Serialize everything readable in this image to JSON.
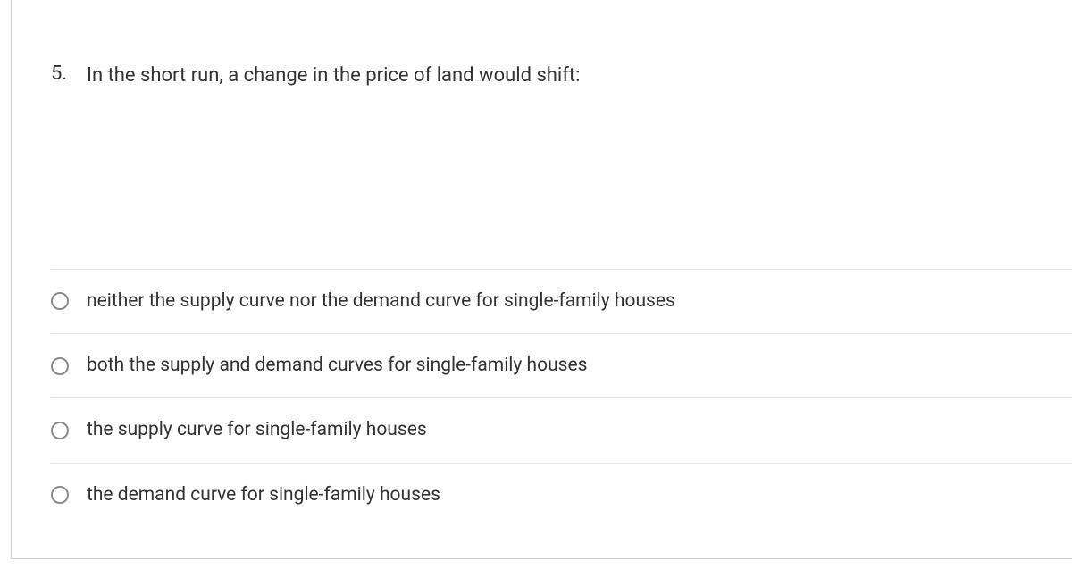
{
  "question": {
    "number": "5.",
    "text": "In the short run, a change in the price of land would shift:",
    "options": [
      {
        "label": "neither the supply curve nor the demand curve for single-family houses"
      },
      {
        "label": "both the supply and demand curves for single-family houses"
      },
      {
        "label": "the supply curve for single-family houses"
      },
      {
        "label": "the demand curve for single-family houses"
      }
    ]
  },
  "styling": {
    "text_color": "#333333",
    "border_color": "#d0d0d0",
    "divider_color": "#e8e8e8",
    "radio_border_color": "#8a8a8a",
    "background_color": "#ffffff",
    "question_fontsize": 22,
    "option_fontsize": 21
  }
}
